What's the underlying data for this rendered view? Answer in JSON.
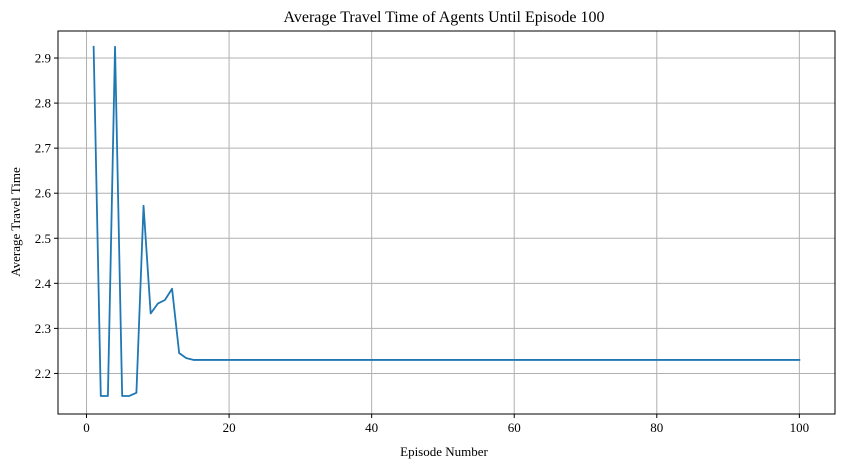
{
  "chart_data": {
    "type": "line",
    "title": "Average Travel Time of Agents Until Episode 100",
    "xlabel": "Episode Number",
    "ylabel": "Average Travel Time",
    "xlim": [
      -4.0,
      105.0
    ],
    "ylim": [
      2.11,
      2.96
    ],
    "xticks": [
      0,
      20,
      40,
      60,
      80,
      100
    ],
    "yticks": [
      2.2,
      2.3,
      2.4,
      2.5,
      2.6,
      2.7,
      2.8,
      2.9
    ],
    "xtick_labels": [
      "0",
      "20",
      "40",
      "60",
      "80",
      "100"
    ],
    "ytick_labels": [
      "2.2",
      "2.3",
      "2.4",
      "2.5",
      "2.6",
      "2.7",
      "2.8",
      "2.9"
    ],
    "grid": true,
    "line_color": "#1f77b4",
    "grid_color": "#b0b0b0",
    "series": [
      {
        "x": [
          1,
          2,
          3,
          4,
          5,
          6,
          7,
          8,
          9,
          10,
          11,
          12,
          13,
          14,
          15,
          16,
          17,
          18,
          19,
          20,
          21,
          22,
          23,
          24,
          25,
          26,
          27,
          28,
          29,
          30,
          31,
          32,
          33,
          34,
          35,
          36,
          37,
          38,
          39,
          40,
          41,
          42,
          43,
          44,
          45,
          46,
          47,
          48,
          49,
          50,
          51,
          52,
          53,
          54,
          55,
          56,
          57,
          58,
          59,
          60,
          61,
          62,
          63,
          64,
          65,
          66,
          67,
          68,
          69,
          70,
          71,
          72,
          73,
          74,
          75,
          76,
          77,
          78,
          79,
          80,
          81,
          82,
          83,
          84,
          85,
          86,
          87,
          88,
          89,
          90,
          91,
          92,
          93,
          94,
          95,
          96,
          97,
          98,
          99,
          100
        ],
        "values": [
          2.925,
          2.15,
          2.15,
          2.925,
          2.15,
          2.15,
          2.157,
          2.572,
          2.333,
          2.355,
          2.363,
          2.388,
          2.245,
          2.234,
          2.23,
          2.23,
          2.23,
          2.23,
          2.23,
          2.23,
          2.23,
          2.23,
          2.23,
          2.23,
          2.23,
          2.23,
          2.23,
          2.23,
          2.23,
          2.23,
          2.23,
          2.23,
          2.23,
          2.23,
          2.23,
          2.23,
          2.23,
          2.23,
          2.23,
          2.23,
          2.23,
          2.23,
          2.23,
          2.23,
          2.23,
          2.23,
          2.23,
          2.23,
          2.23,
          2.23,
          2.23,
          2.23,
          2.23,
          2.23,
          2.23,
          2.23,
          2.23,
          2.23,
          2.23,
          2.23,
          2.23,
          2.23,
          2.23,
          2.23,
          2.23,
          2.23,
          2.23,
          2.23,
          2.23,
          2.23,
          2.23,
          2.23,
          2.23,
          2.23,
          2.23,
          2.23,
          2.23,
          2.23,
          2.23,
          2.23,
          2.23,
          2.23,
          2.23,
          2.23,
          2.23,
          2.23,
          2.23,
          2.23,
          2.23,
          2.23,
          2.23,
          2.23,
          2.23,
          2.23,
          2.23,
          2.23,
          2.23,
          2.23,
          2.23,
          2.23
        ]
      }
    ]
  }
}
